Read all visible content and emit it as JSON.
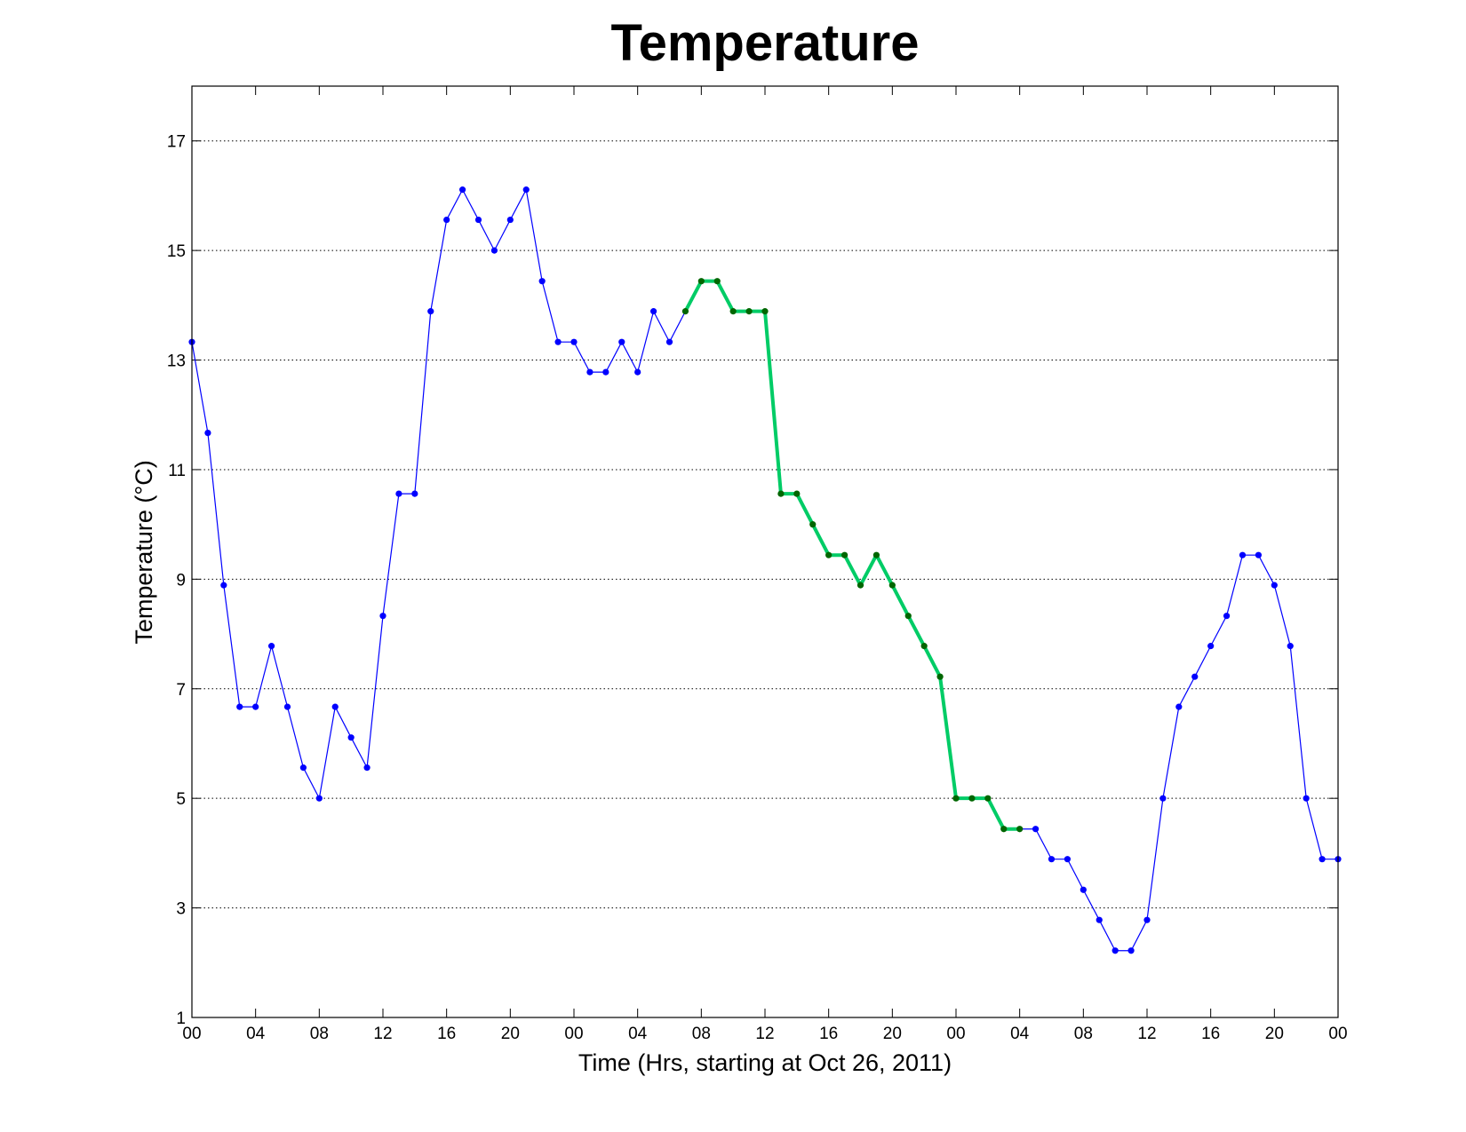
{
  "chart_data": {
    "type": "line",
    "title": "Temperature",
    "xlabel": "Time (Hrs, starting at Oct 26, 2011)",
    "ylabel": "Temperature (°C)",
    "xlim": [
      0,
      72
    ],
    "ylim": [
      1,
      18
    ],
    "x_ticks": [
      0,
      4,
      8,
      12,
      16,
      20,
      24,
      28,
      32,
      36,
      40,
      44,
      48,
      52,
      56,
      60,
      64,
      68,
      72
    ],
    "x_tick_labels": [
      "00",
      "04",
      "08",
      "12",
      "16",
      "20",
      "00",
      "04",
      "08",
      "12",
      "16",
      "20",
      "00",
      "04",
      "08",
      "12",
      "16",
      "20",
      "00"
    ],
    "y_ticks": [
      1,
      3,
      5,
      7,
      9,
      11,
      13,
      15,
      17
    ],
    "y_tick_labels": [
      "1",
      "3",
      "5",
      "7",
      "9",
      "11",
      "13",
      "15",
      "17"
    ],
    "grid": "y-dotted",
    "colors": {
      "series": "#0000ff",
      "highlight_line": "#00cc66",
      "highlight_marker": "#006600"
    },
    "series": [
      {
        "values": [
          13.33,
          11.67,
          8.89,
          6.67,
          6.67,
          7.78,
          6.67,
          5.56,
          5.0,
          6.67,
          6.11,
          5.56,
          8.33,
          10.56,
          10.56,
          13.89,
          15.56,
          16.11,
          15.56,
          15.0,
          15.56,
          16.11,
          14.44,
          13.33,
          13.33,
          12.78,
          12.78,
          13.33,
          12.78,
          13.89,
          13.33,
          13.89,
          14.44,
          14.44,
          13.89,
          13.89,
          13.89,
          10.56,
          10.56,
          10.0,
          9.44,
          9.44,
          8.89,
          9.44,
          8.89,
          8.33,
          7.78,
          7.22,
          5.0,
          5.0,
          5.0,
          4.44,
          4.44,
          4.44,
          3.89,
          3.89,
          3.33,
          2.78,
          2.22,
          2.22,
          2.78,
          5.0,
          6.67,
          7.22,
          7.78,
          8.33,
          9.44,
          9.44,
          8.89,
          7.78,
          5.0,
          3.89,
          3.89
        ]
      }
    ],
    "highlight_range": [
      31,
      52
    ]
  }
}
